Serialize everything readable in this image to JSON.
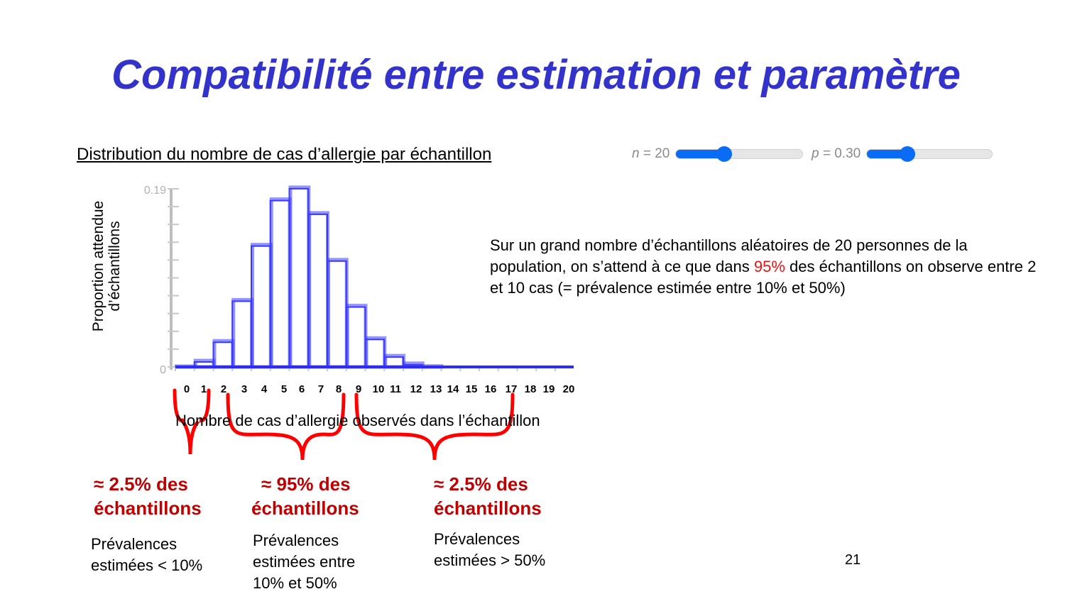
{
  "slide": {
    "title": "Compatibilité entre estimation et paramètre",
    "subtitle": "Distribution du nombre de cas d’allergie par échantillon",
    "page_number": "21"
  },
  "controls": {
    "n_slider": {
      "label_var": "n",
      "label_value": "= 20",
      "value": 20,
      "fill_pct": 38
    },
    "p_slider": {
      "label_var": "p",
      "label_value": "= 0.30",
      "value": 0.3,
      "fill_pct": 32
    },
    "accent_color": "#0a6cf5"
  },
  "description": {
    "before": "Sur un grand nombre d’échantillons aléatoires de 20 personnes de la population, on s’attend à ce que dans ",
    "highlight": "95%",
    "after": " des échantillons on observe entre 2 et 10 cas (= prévalence estimée entre 10% et 50%)",
    "highlight_color": "#ee1111"
  },
  "groups": [
    {
      "callout_line1": "≈ 2.5% des",
      "callout_line2": "échantillons",
      "note_line1": "Prévalences",
      "note_line2": "estimées < 10%",
      "note_line3": ""
    },
    {
      "callout_line1": "≈ 95% des",
      "callout_line2": "échantillons",
      "note_line1": "Prévalences",
      "note_line2": "estimées entre",
      "note_line3": "10% et 50%"
    },
    {
      "callout_line1": "≈ 2.5% des",
      "callout_line2": "échantillons",
      "note_line1": "Prévalences",
      "note_line2": "estimées > 50%",
      "note_line3": ""
    }
  ],
  "chart_data": {
    "type": "bar",
    "title": "Distribution du nombre de cas d’allergie par échantillon",
    "xlabel": "Nombre de cas d’allergie observés dans l’échantillon",
    "ylabel_line1": "Proportion attendue",
    "ylabel_line2": "d’échantillons",
    "ylabel": "Proportion attendue d’échantillons",
    "y_tick_top": "0.19",
    "y_tick_bottom": "0",
    "ylim": [
      0,
      0.19
    ],
    "categories": [
      "0",
      "1",
      "2",
      "3",
      "4",
      "5",
      "6",
      "7",
      "8",
      "9",
      "10",
      "11",
      "12",
      "13",
      "14",
      "15",
      "16",
      "17",
      "18",
      "19",
      "20"
    ],
    "values": [
      0.0008,
      0.0068,
      0.0278,
      0.0716,
      0.1304,
      0.1789,
      0.1916,
      0.1643,
      0.1144,
      0.0654,
      0.0308,
      0.012,
      0.0039,
      0.001,
      0.0002,
      0.0,
      0.0,
      0.0,
      0.0,
      0.0,
      0.0
    ],
    "bar_color": "#3333ff",
    "grid": false,
    "annotations": [
      {
        "range": [
          0,
          1
        ],
        "text": "≈ 2.5% des échantillons"
      },
      {
        "range": [
          2,
          10
        ],
        "text": "≈ 95% des échantillons"
      },
      {
        "range": [
          11,
          20
        ],
        "text": "≈ 2.5% des échantillons"
      }
    ]
  }
}
